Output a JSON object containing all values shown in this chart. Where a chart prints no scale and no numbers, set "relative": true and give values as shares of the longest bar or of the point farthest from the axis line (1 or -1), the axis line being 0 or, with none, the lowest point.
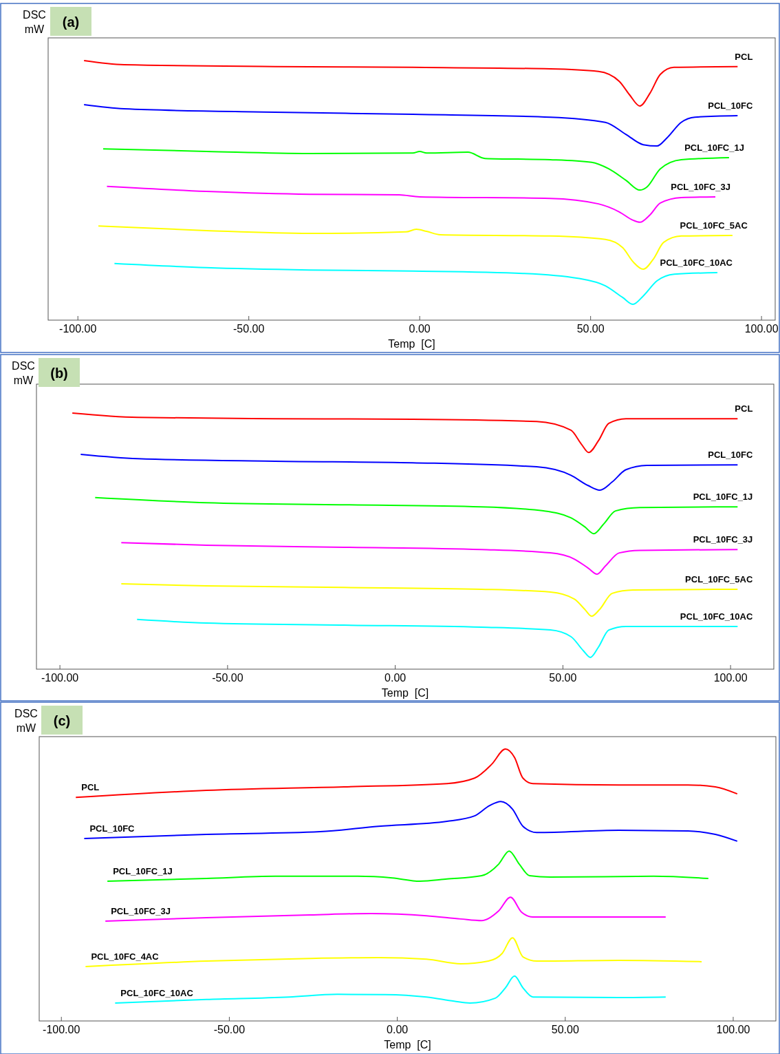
{
  "chart_data": [
    {
      "type": "line",
      "title": "(a)",
      "ylabel": "DSC mW",
      "xlabel": "Temp  [C]",
      "relative": true,
      "xlim": [
        -108.7,
        104
      ],
      "xticks": [
        {
          "value": -100,
          "label": "-100.00"
        },
        {
          "value": -50,
          "label": "-50.00"
        },
        {
          "value": 0,
          "label": "0.00"
        },
        {
          "value": 50,
          "label": "50.00"
        },
        {
          "value": 100,
          "label": "100.00"
        }
      ],
      "series": [
        {
          "name": "PCL",
          "color": "#ff0000",
          "x": [
            -98.2,
            -86.5,
            -42.3,
            -2.0,
            38.2,
            52.3,
            58.4,
            61.4,
            64.4,
            67.4,
            70.4,
            74.4,
            93.0
          ],
          "values": [
            1.0,
            0.984,
            0.977,
            0.974,
            0.968,
            0.958,
            0.92,
            0.868,
            0.825,
            0.875,
            0.947,
            0.974,
            0.977
          ]
        },
        {
          "name": "PCL_10FC",
          "color": "#0000ff",
          "x": [
            -98.2,
            -86.5,
            -42.3,
            -2.0,
            38.2,
            54.3,
            60.3,
            65.4,
            69.4,
            72.4,
            76.5,
            80.5,
            93.0
          ],
          "values": [
            0.83,
            0.814,
            0.801,
            0.793,
            0.782,
            0.762,
            0.716,
            0.676,
            0.671,
            0.703,
            0.762,
            0.782,
            0.788
          ]
        },
        {
          "name": "PCL_10FC_1J",
          "color": "#00ff00",
          "x": [
            -92.6,
            -62.4,
            -32.2,
            -2.0,
            0.0,
            2.0,
            14.1,
            19.1,
            38.2,
            50.3,
            55.3,
            60.4,
            64.4,
            66.4,
            70.4,
            76.5,
            90.5
          ],
          "values": [
            0.66,
            0.65,
            0.642,
            0.644,
            0.65,
            0.644,
            0.647,
            0.623,
            0.618,
            0.608,
            0.583,
            0.538,
            0.501,
            0.512,
            0.583,
            0.618,
            0.626
          ]
        },
        {
          "name": "PCL_10FC_3J",
          "color": "#ff00ff",
          "x": [
            -91.5,
            -62.4,
            -32.2,
            -6.0,
            0.0,
            38.2,
            52.3,
            58.4,
            62.4,
            64.4,
            67.4,
            70.4,
            76.5,
            86.5
          ],
          "values": [
            0.515,
            0.496,
            0.485,
            0.483,
            0.475,
            0.469,
            0.448,
            0.417,
            0.385,
            0.377,
            0.406,
            0.451,
            0.472,
            0.475
          ]
        },
        {
          "name": "PCL_10FC_5AC",
          "color": "#ffff00",
          "x": [
            -94.0,
            -62.4,
            -32.2,
            -4.0,
            -1.0,
            2.0,
            6.0,
            38.2,
            54.3,
            59.4,
            62.4,
            65.4,
            68.4,
            71.4,
            76.5,
            91.5
          ],
          "values": [
            0.363,
            0.345,
            0.334,
            0.34,
            0.35,
            0.342,
            0.329,
            0.324,
            0.311,
            0.279,
            0.225,
            0.196,
            0.236,
            0.3,
            0.324,
            0.326
          ]
        },
        {
          "name": "PCL_10FC_10AC",
          "color": "#00ffff",
          "x": [
            -89.3,
            -62.4,
            -32.2,
            -2.0,
            30.2,
            46.3,
            54.3,
            59.4,
            62.4,
            65.4,
            69.4,
            74.5,
            87.1
          ],
          "values": [
            0.218,
            0.202,
            0.193,
            0.189,
            0.18,
            0.161,
            0.132,
            0.087,
            0.061,
            0.093,
            0.151,
            0.177,
            0.183
          ]
        }
      ]
    },
    {
      "type": "line",
      "title": "(b)",
      "ylabel": "DSC mW",
      "xlabel": "Temp  [C]",
      "relative": true,
      "xlim": [
        -107,
        112.9
      ],
      "xticks": [
        {
          "value": -100,
          "label": "-100.00"
        },
        {
          "value": -50,
          "label": "-50.00"
        },
        {
          "value": 0,
          "label": "0.00"
        },
        {
          "value": 50,
          "label": "50.00"
        },
        {
          "value": 100,
          "label": "100.00"
        }
      ],
      "series": [
        {
          "name": "PCL",
          "color": "#ff0000",
          "x": [
            -96.3,
            -76.8,
            -35.8,
            5.2,
            42.2,
            52.4,
            55.5,
            57.7,
            60.6,
            63.7,
            68.8,
            102.1
          ],
          "values": [
            1.0,
            0.983,
            0.978,
            0.976,
            0.967,
            0.933,
            0.879,
            0.846,
            0.892,
            0.96,
            0.978,
            0.978
          ]
        },
        {
          "name": "PCL_10FC",
          "color": "#0000ff",
          "x": [
            -93.8,
            -76.8,
            -35.8,
            5.2,
            42.2,
            52.4,
            57.5,
            61.0,
            64.7,
            68.8,
            75.0,
            102.1
          ],
          "values": [
            0.839,
            0.822,
            0.812,
            0.806,
            0.79,
            0.757,
            0.717,
            0.699,
            0.731,
            0.779,
            0.796,
            0.798
          ]
        },
        {
          "name": "PCL_10FC_1J",
          "color": "#00ff00",
          "x": [
            -89.5,
            -56.3,
            -15.3,
            25.7,
            44.2,
            52.4,
            56.5,
            59.2,
            62.3,
            65.7,
            72.9,
            102.1
          ],
          "values": [
            0.67,
            0.65,
            0.642,
            0.634,
            0.618,
            0.591,
            0.556,
            0.529,
            0.569,
            0.618,
            0.631,
            0.634
          ]
        },
        {
          "name": "PCL_10FC_3J",
          "color": "#ff00ff",
          "x": [
            -81.7,
            -56.3,
            -15.3,
            25.7,
            46.3,
            53.4,
            57.5,
            60.2,
            62.7,
            66.8,
            72.9,
            102.1
          ],
          "values": [
            0.494,
            0.484,
            0.476,
            0.467,
            0.454,
            0.43,
            0.395,
            0.371,
            0.403,
            0.454,
            0.464,
            0.467
          ]
        },
        {
          "name": "PCL_10FC_5AC",
          "color": "#ffff00",
          "x": [
            -81.7,
            -56.3,
            -15.3,
            25.7,
            46.3,
            53.4,
            56.5,
            58.6,
            61.0,
            64.7,
            70.9,
            102.1
          ],
          "values": [
            0.333,
            0.325,
            0.319,
            0.312,
            0.301,
            0.274,
            0.234,
            0.207,
            0.234,
            0.296,
            0.309,
            0.312
          ]
        },
        {
          "name": "PCL_10FC_10AC",
          "color": "#00ffff",
          "x": [
            -77.0,
            -56.3,
            -15.3,
            25.7,
            46.3,
            52.4,
            56.1,
            58.2,
            60.6,
            63.7,
            68.8,
            102.1
          ],
          "values": [
            0.194,
            0.18,
            0.172,
            0.164,
            0.153,
            0.127,
            0.072,
            0.046,
            0.086,
            0.153,
            0.167,
            0.167
          ]
        }
      ]
    },
    {
      "type": "line",
      "title": "(c)",
      "ylabel": "DSC mW",
      "xlabel": "Temp  [C]",
      "relative": true,
      "xlim": [
        -106.6,
        112.7
      ],
      "xticks": [
        {
          "value": -100,
          "label": "-100.00"
        },
        {
          "value": -50,
          "label": "-50.00"
        },
        {
          "value": 0,
          "label": "0.00"
        },
        {
          "value": 50,
          "label": "50.00"
        },
        {
          "value": 100,
          "label": "100.00"
        }
      ],
      "series": [
        {
          "name": "PCL",
          "color": "#ff0000",
          "x": [
            -95.7,
            -56.8,
            -15.9,
            14.8,
            23.0,
            28.1,
            32.2,
            34.9,
            37.4,
            40.4,
            66.0,
            86.5,
            94.7,
            101.2
          ],
          "values": [
            0.822,
            0.848,
            0.861,
            0.873,
            0.893,
            0.944,
            1.0,
            0.969,
            0.893,
            0.873,
            0.868,
            0.868,
            0.861,
            0.835
          ]
        },
        {
          "name": "PCL_10FC",
          "color": "#0000ff",
          "x": [
            -93.2,
            -56.8,
            -23.0,
            -5.6,
            14.8,
            23.0,
            27.5,
            30.8,
            34.3,
            37.4,
            41.5,
            66.0,
            86.5,
            94.7,
            101.2
          ],
          "values": [
            0.671,
            0.686,
            0.696,
            0.716,
            0.734,
            0.754,
            0.792,
            0.807,
            0.779,
            0.716,
            0.693,
            0.701,
            0.699,
            0.686,
            0.661
          ]
        },
        {
          "name": "PCL_10FC_1J",
          "color": "#00ff00",
          "x": [
            -86.3,
            -56.8,
            -36.3,
            -11.8,
            -1.5,
            6.7,
            14.8,
            25.1,
            30.2,
            33.3,
            36.3,
            39.4,
            45.5,
            76.3,
            92.6
          ],
          "values": [
            0.514,
            0.524,
            0.532,
            0.532,
            0.526,
            0.514,
            0.522,
            0.534,
            0.577,
            0.625,
            0.577,
            0.534,
            0.529,
            0.532,
            0.524
          ]
        },
        {
          "name": "PCL_10FC_3J",
          "color": "#ff00ff",
          "x": [
            -86.9,
            -56.8,
            -26.1,
            -7.7,
            8.7,
            18.9,
            25.1,
            30.2,
            33.7,
            37.0,
            40.4,
            66.0,
            79.9
          ],
          "values": [
            0.367,
            0.38,
            0.39,
            0.395,
            0.387,
            0.375,
            0.369,
            0.405,
            0.455,
            0.4,
            0.382,
            0.382,
            0.382
          ]
        },
        {
          "name": "PCL_10FC_4AC",
          "color": "#ffff00",
          "x": [
            -92.8,
            -56.8,
            -26.1,
            -5.6,
            8.7,
            18.9,
            27.1,
            31.2,
            34.3,
            37.4,
            41.5,
            66.0,
            90.6
          ],
          "values": [
            0.2,
            0.22,
            0.23,
            0.233,
            0.227,
            0.21,
            0.22,
            0.248,
            0.306,
            0.236,
            0.22,
            0.223,
            0.218
          ]
        },
        {
          "name": "PCL_10FC_10AC",
          "color": "#00ffff",
          "x": [
            -84.0,
            -56.8,
            -32.2,
            -17.9,
            -3.6,
            8.7,
            16.9,
            21.6,
            29.2,
            32.2,
            34.9,
            37.4,
            40.4,
            66.0,
            79.9
          ],
          "values": [
            0.066,
            0.079,
            0.088,
            0.098,
            0.097,
            0.088,
            0.073,
            0.066,
            0.084,
            0.122,
            0.165,
            0.122,
            0.088,
            0.086,
            0.088
          ]
        }
      ]
    }
  ]
}
